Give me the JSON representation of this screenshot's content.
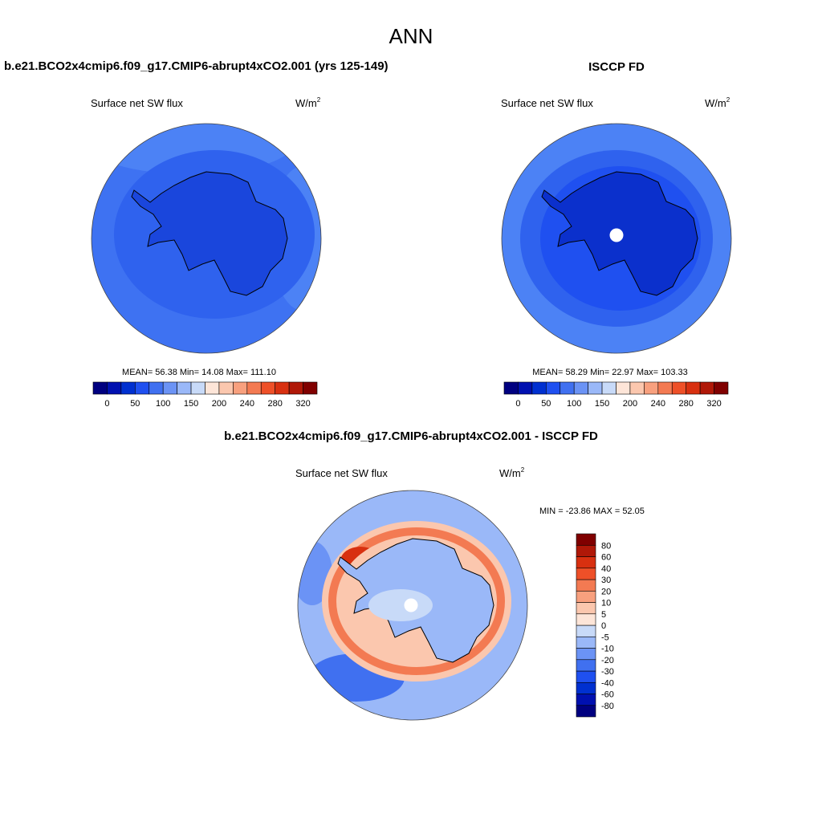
{
  "title": "ANN",
  "panels": [
    {
      "title": "b.e21.BCO2x4cmip6.f09_g17.CMIP6-abrupt4xCO2.001 (yrs 125-149)",
      "variable": "Surface net SW flux",
      "units": "W/m",
      "units_exponent": "2",
      "stats": "MEAN=  56.38  Min=  14.08  Max= 111.10"
    },
    {
      "title": "ISCCP FD",
      "variable": "Surface net SW flux",
      "units": "W/m",
      "units_exponent": "2",
      "stats": "MEAN=  58.29  Min=  22.97  Max= 103.33"
    },
    {
      "title": "b.e21.BCO2x4cmip6.f09_g17.CMIP6-abrupt4xCO2.001 - ISCCP FD",
      "variable": "Surface net SW flux",
      "units": "W/m",
      "units_exponent": "2",
      "stats": "MIN = -23.86 MAX =  52.05"
    }
  ],
  "colorbar": {
    "colors": [
      "#000080",
      "#0010b0",
      "#0030d0",
      "#1f50f0",
      "#4070f0",
      "#6b93f5",
      "#9ab8f8",
      "#c8daf8",
      "#fde5d8",
      "#fbc7ae",
      "#f8a07e",
      "#f37a52",
      "#ee5028",
      "#d83010",
      "#b01808",
      "#800000"
    ],
    "labels": [
      "0",
      "50",
      "100",
      "150",
      "200",
      "240",
      "280",
      "320"
    ]
  },
  "diff_colorbar": {
    "labels": [
      "-80",
      "-60",
      "-40",
      "-30",
      "-20",
      "-10",
      "-5",
      "0",
      "5",
      "10",
      "20",
      "30",
      "40",
      "60",
      "80"
    ]
  }
}
